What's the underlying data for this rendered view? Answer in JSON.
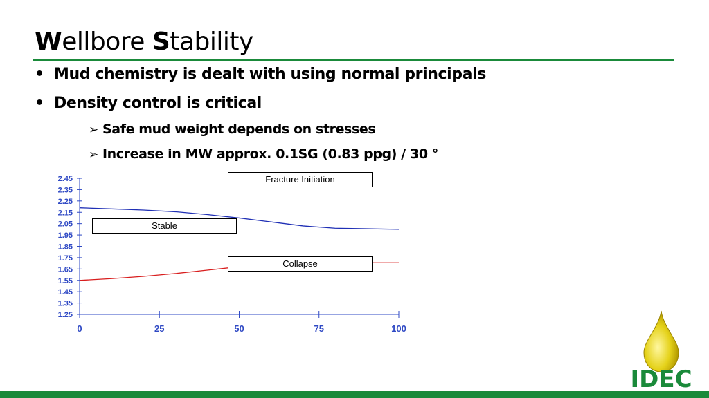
{
  "slide": {
    "title_initial_1": "W",
    "title_rest_1": "ellbore ",
    "title_initial_2": "S",
    "title_rest_2": "tability",
    "bullets": [
      "Mud chemistry is dealt with using normal principals",
      "Density control is critical"
    ],
    "sub_bullets": [
      "Safe mud weight depends on stresses",
      "Increase in MW  approx. 0.1SG (0.83 ppg) / 30 °"
    ],
    "bullet_glyph": "•",
    "sub_bullet_glyph": "➢",
    "logo_text": "IDEC"
  },
  "chart_data": {
    "type": "line",
    "xlim": [
      0,
      100
    ],
    "ylim": [
      1.25,
      2.45
    ],
    "x_ticks": [
      "0",
      "25",
      "50",
      "75",
      "100"
    ],
    "y_ticks": [
      "2.45",
      "2.35",
      "2.25",
      "2.15",
      "2.05",
      "1.95",
      "1.85",
      "1.75",
      "1.65",
      "1.55",
      "1.45",
      "1.35",
      "1.25"
    ],
    "series": [
      {
        "color": "#1f2fb5",
        "x": [
          0,
          10,
          20,
          30,
          40,
          50,
          60,
          70,
          80,
          90,
          100
        ],
        "values": [
          2.19,
          2.18,
          2.17,
          2.155,
          2.13,
          2.1,
          2.065,
          2.03,
          2.01,
          2.005,
          2.0
        ]
      },
      {
        "color": "#d81e1e",
        "x": [
          0,
          10,
          20,
          30,
          40,
          50,
          60,
          70,
          80,
          90,
          100
        ],
        "values": [
          1.55,
          1.565,
          1.585,
          1.61,
          1.64,
          1.67,
          1.69,
          1.7,
          1.705,
          1.705,
          1.705
        ]
      }
    ],
    "annotations": [
      {
        "label": "Fracture Initiation"
      },
      {
        "label": "Stable"
      },
      {
        "label": "Collapse"
      }
    ]
  }
}
